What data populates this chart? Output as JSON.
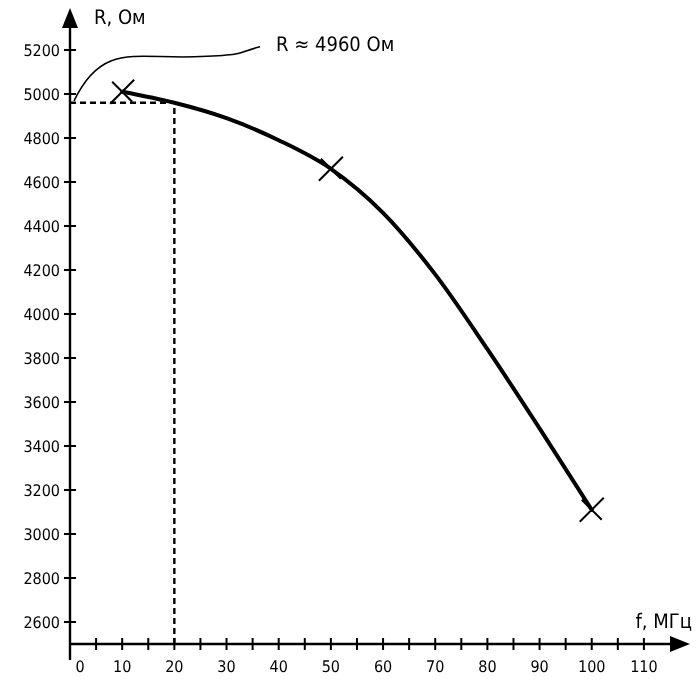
{
  "chart_data": {
    "type": "line",
    "xlabel": "f, МГц",
    "ylabel": "R, Ом",
    "xlim": [
      0,
      115
    ],
    "ylim": [
      2500,
      5300
    ],
    "xticks": [
      0,
      {
        "value": 5,
        "label": null
      },
      10,
      {
        "value": 15,
        "label": null
      },
      20,
      {
        "value": 25,
        "label": null
      },
      30,
      {
        "value": 35,
        "label": null
      },
      40,
      {
        "value": 45,
        "label": null
      },
      50,
      {
        "value": 55,
        "label": null
      },
      60,
      {
        "value": 65,
        "label": null
      },
      70,
      {
        "value": 75,
        "label": null
      },
      80,
      {
        "value": 85,
        "label": null
      },
      90,
      {
        "value": 95,
        "label": null
      },
      100,
      {
        "value": 105,
        "label": null
      },
      110
    ],
    "yticks": [
      2600,
      2800,
      3000,
      3200,
      3400,
      3600,
      3800,
      4000,
      4200,
      4400,
      4600,
      4800,
      5000,
      5200
    ],
    "grid": false,
    "series": [
      {
        "color": "#000000",
        "marker": "none",
        "x": [
          10,
          20,
          30,
          40,
          50,
          60,
          70,
          80,
          90,
          100
        ],
        "values": [
          5010,
          4960,
          4890,
          4790,
          4660,
          4460,
          4180,
          3840,
          3480,
          3110
        ]
      },
      {
        "type": "scatter",
        "color": "#000000",
        "marker": "cross",
        "x": [
          10,
          50,
          100
        ],
        "values": [
          5010,
          4660,
          3110
        ]
      }
    ],
    "ref_lines": [
      {
        "axis": "x",
        "value": 20,
        "line_style": "dashed",
        "color": "#000000"
      },
      {
        "axis": "y",
        "value": 4960,
        "line_style": "dashed",
        "color": "#000000"
      }
    ],
    "annotations": [
      {
        "text": "R ≈ 4960 Ом",
        "x": 0,
        "y": 4960
      }
    ]
  }
}
